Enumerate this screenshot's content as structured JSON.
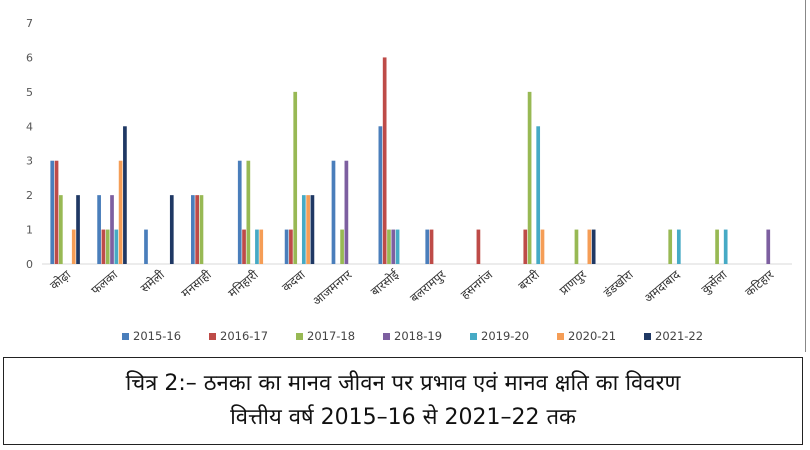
{
  "chart_data": {
    "type": "bar",
    "title": "",
    "xlabel": "",
    "ylabel": "",
    "ylim": [
      0,
      7
    ],
    "yticks": [
      "0",
      "1",
      "2",
      "3",
      "4",
      "5",
      "6",
      "7"
    ],
    "grid": false,
    "legend_position": "bottom",
    "categories": [
      "कोढ़ा",
      "फलका",
      "समेली",
      "मनसाही",
      "मनिहारी",
      "कदवा",
      "आजमनगर",
      "बारसोई",
      "बलरामपुर",
      "हसनगंज",
      "बरारी",
      "प्राणपुर",
      "डंडखोरा",
      "अमदाबाद",
      "कुर्सेला",
      "कटिहार"
    ],
    "series": [
      {
        "name": "2015-16",
        "color": "#4a7ebb",
        "values": [
          3,
          2,
          1,
          2,
          3,
          1,
          3,
          4,
          1,
          0,
          0,
          0,
          0,
          0,
          0,
          0
        ]
      },
      {
        "name": "2016-17",
        "color": "#be4b48",
        "values": [
          3,
          1,
          0,
          2,
          1,
          1,
          0,
          6,
          1,
          1,
          1,
          0,
          0,
          0,
          0,
          0
        ]
      },
      {
        "name": "2017-18",
        "color": "#98b954",
        "values": [
          2,
          1,
          0,
          2,
          3,
          5,
          1,
          1,
          0,
          0,
          5,
          1,
          0,
          1,
          1,
          0
        ]
      },
      {
        "name": "2018-19",
        "color": "#7d5fa0",
        "values": [
          0,
          2,
          0,
          0,
          0,
          0,
          3,
          1,
          0,
          0,
          0,
          0,
          0,
          0,
          0,
          1
        ]
      },
      {
        "name": "2019-20",
        "color": "#46aac5",
        "values": [
          0,
          1,
          0,
          0,
          1,
          2,
          0,
          1,
          0,
          0,
          4,
          0,
          0,
          1,
          1,
          0
        ]
      },
      {
        "name": "2020-21",
        "color": "#f59d56",
        "values": [
          1,
          3,
          0,
          0,
          1,
          2,
          0,
          0,
          0,
          0,
          1,
          1,
          0,
          0,
          0,
          0
        ]
      },
      {
        "name": "2021-22",
        "color": "#1f3864",
        "values": [
          2,
          4,
          2,
          0,
          0,
          2,
          0,
          0,
          0,
          0,
          0,
          1,
          0,
          0,
          0,
          0
        ]
      }
    ]
  },
  "caption": {
    "line1": "चित्र 2:– ठनका का मानव जीवन पर प्रभाव एवं मानव क्षति का विवरण",
    "line2": "वित्तीय वर्ष 2015–16 से 2021–22 तक"
  }
}
